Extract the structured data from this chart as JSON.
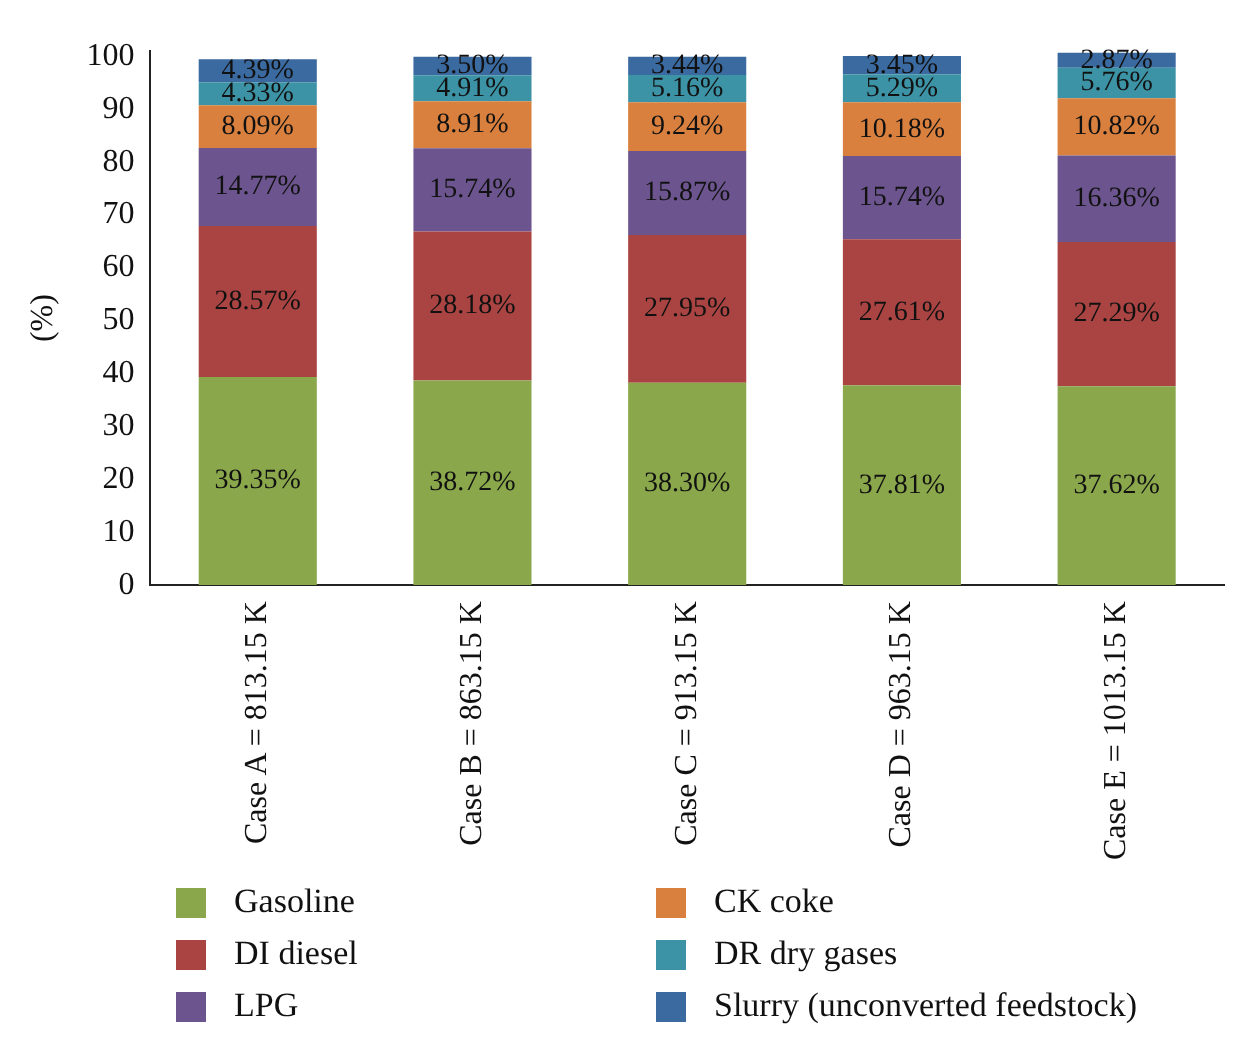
{
  "chart_data": {
    "type": "bar",
    "stacked": true,
    "ylabel": "(%)",
    "categories": [
      "Case A = 813.15 K",
      "Case B = 863.15 K",
      "Case C = 913.15 K",
      "Case D = 963.15 K",
      "Case E = 1013.15 K"
    ],
    "series": [
      {
        "name": "Gasoline",
        "color": "#8aa84b",
        "values": [
          39.35,
          38.72,
          38.3,
          37.81,
          37.62
        ],
        "value_labels": [
          "39.35%",
          "38.72%",
          "38.30%",
          "37.81%",
          "37.62%"
        ]
      },
      {
        "name": "DI diesel",
        "color": "#a94442",
        "values": [
          28.57,
          28.18,
          27.95,
          27.61,
          27.29
        ],
        "value_labels": [
          "28.57%",
          "28.18%",
          "27.95%",
          "27.61%",
          "27.29%"
        ]
      },
      {
        "name": "LPG",
        "color": "#6c558e",
        "values": [
          14.77,
          15.74,
          15.87,
          15.74,
          16.36
        ],
        "value_labels": [
          "14.77%",
          "15.74%",
          "15.87%",
          "15.74%",
          "16.36%"
        ]
      },
      {
        "name": "CK coke",
        "color": "#d9803f",
        "values": [
          8.09,
          8.91,
          9.24,
          10.18,
          10.82
        ],
        "value_labels": [
          "8.09%",
          "8.91%",
          "9.24%",
          "10.18%",
          "10.82%"
        ]
      },
      {
        "name": "DR dry gases",
        "color": "#3d93a6",
        "values": [
          4.33,
          4.91,
          5.16,
          5.29,
          5.76
        ],
        "value_labels": [
          "4.33%",
          "4.91%",
          "5.16%",
          "5.29%",
          "5.76%"
        ]
      },
      {
        "name": "Slurry (unconverted feedstock)",
        "color": "#3a6aa0",
        "values": [
          4.39,
          3.5,
          3.44,
          3.45,
          2.87
        ],
        "value_labels": [
          "4.39%",
          "3.50%",
          "3.44%",
          "3.45%",
          "2.87%"
        ]
      }
    ],
    "ylim": [
      0,
      101
    ],
    "yticks": [
      0,
      10,
      20,
      30,
      40,
      50,
      60,
      70,
      80,
      90,
      100
    ],
    "grid": false,
    "legend": "bottom"
  }
}
